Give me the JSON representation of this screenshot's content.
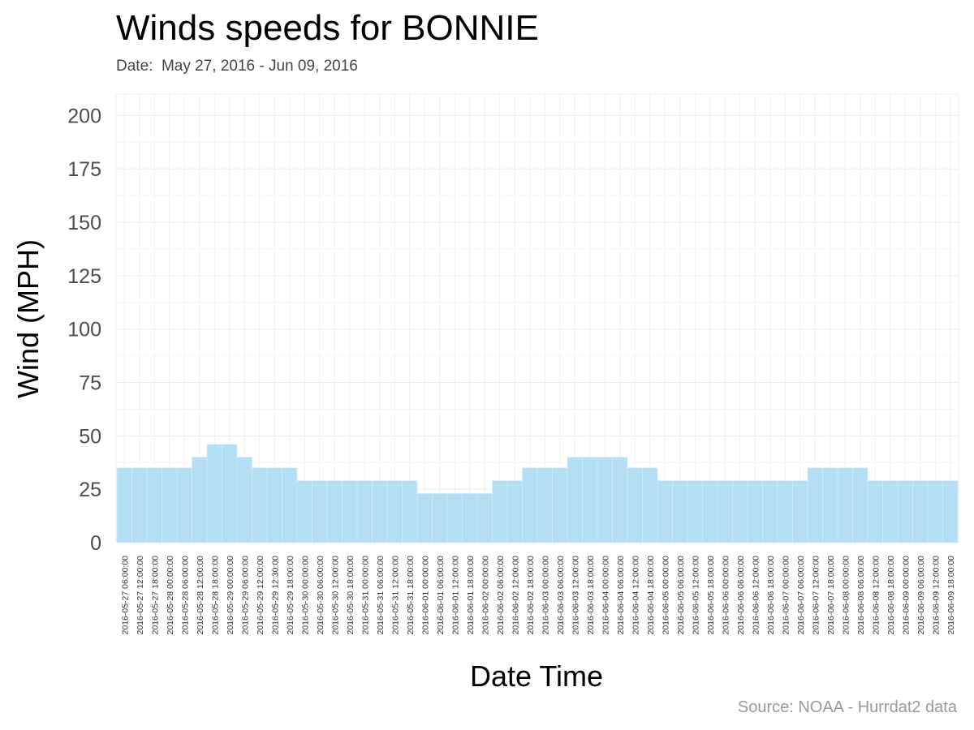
{
  "chart_data": {
    "type": "bar",
    "title": "Winds speeds for BONNIE",
    "subtitle": "Date:  May 27, 2016 - Jun 09, 2016",
    "xlabel": "Date Time",
    "ylabel": "Wind (MPH)",
    "caption": "Source: NOAA - Hurrdat2 data",
    "ylim": [
      0,
      210
    ],
    "yticks": [
      0,
      25,
      50,
      75,
      100,
      125,
      150,
      175,
      200
    ],
    "grid": true,
    "bar_color": "#b3def3",
    "categories": [
      "2016-05-27 06:00:00",
      "2016-05-27 12:00:00",
      "2016-05-27 18:00:00",
      "2016-05-28 00:00:00",
      "2016-05-28 06:00:00",
      "2016-05-28 12:00:00",
      "2016-05-28 18:00:00",
      "2016-05-29 00:00:00",
      "2016-05-29 06:00:00",
      "2016-05-29 12:00:00",
      "2016-05-29 12:30:00",
      "2016-05-29 18:00:00",
      "2016-05-30 00:00:00",
      "2016-05-30 06:00:00",
      "2016-05-30 12:00:00",
      "2016-05-30 18:00:00",
      "2016-05-31 00:00:00",
      "2016-05-31 06:00:00",
      "2016-05-31 12:00:00",
      "2016-05-31 18:00:00",
      "2016-06-01 00:00:00",
      "2016-06-01 06:00:00",
      "2016-06-01 12:00:00",
      "2016-06-01 18:00:00",
      "2016-06-02 00:00:00",
      "2016-06-02 06:00:00",
      "2016-06-02 12:00:00",
      "2016-06-02 18:00:00",
      "2016-06-03 00:00:00",
      "2016-06-03 06:00:00",
      "2016-06-03 12:00:00",
      "2016-06-03 18:00:00",
      "2016-06-04 00:00:00",
      "2016-06-04 06:00:00",
      "2016-06-04 12:00:00",
      "2016-06-04 18:00:00",
      "2016-06-05 00:00:00",
      "2016-06-05 06:00:00",
      "2016-06-05 12:00:00",
      "2016-06-05 18:00:00",
      "2016-06-06 00:00:00",
      "2016-06-06 06:00:00",
      "2016-06-06 12:00:00",
      "2016-06-06 18:00:00",
      "2016-06-07 00:00:00",
      "2016-06-07 06:00:00",
      "2016-06-07 12:00:00",
      "2016-06-07 18:00:00",
      "2016-06-08 00:00:00",
      "2016-06-08 06:00:00",
      "2016-06-08 12:00:00",
      "2016-06-08 18:00:00",
      "2016-06-09 00:00:00",
      "2016-06-09 06:00:00",
      "2016-06-09 12:00:00",
      "2016-06-09 18:00:00"
    ],
    "values": [
      35,
      35,
      35,
      35,
      35,
      40,
      46,
      46,
      40,
      35,
      35,
      35,
      29,
      29,
      29,
      29,
      29,
      29,
      29,
      29,
      23,
      23,
      23,
      23,
      23,
      29,
      29,
      35,
      35,
      35,
      40,
      40,
      40,
      40,
      35,
      35,
      29,
      29,
      29,
      29,
      29,
      29,
      29,
      29,
      29,
      29,
      35,
      35,
      35,
      35,
      29,
      29,
      29,
      29,
      29,
      29
    ]
  }
}
